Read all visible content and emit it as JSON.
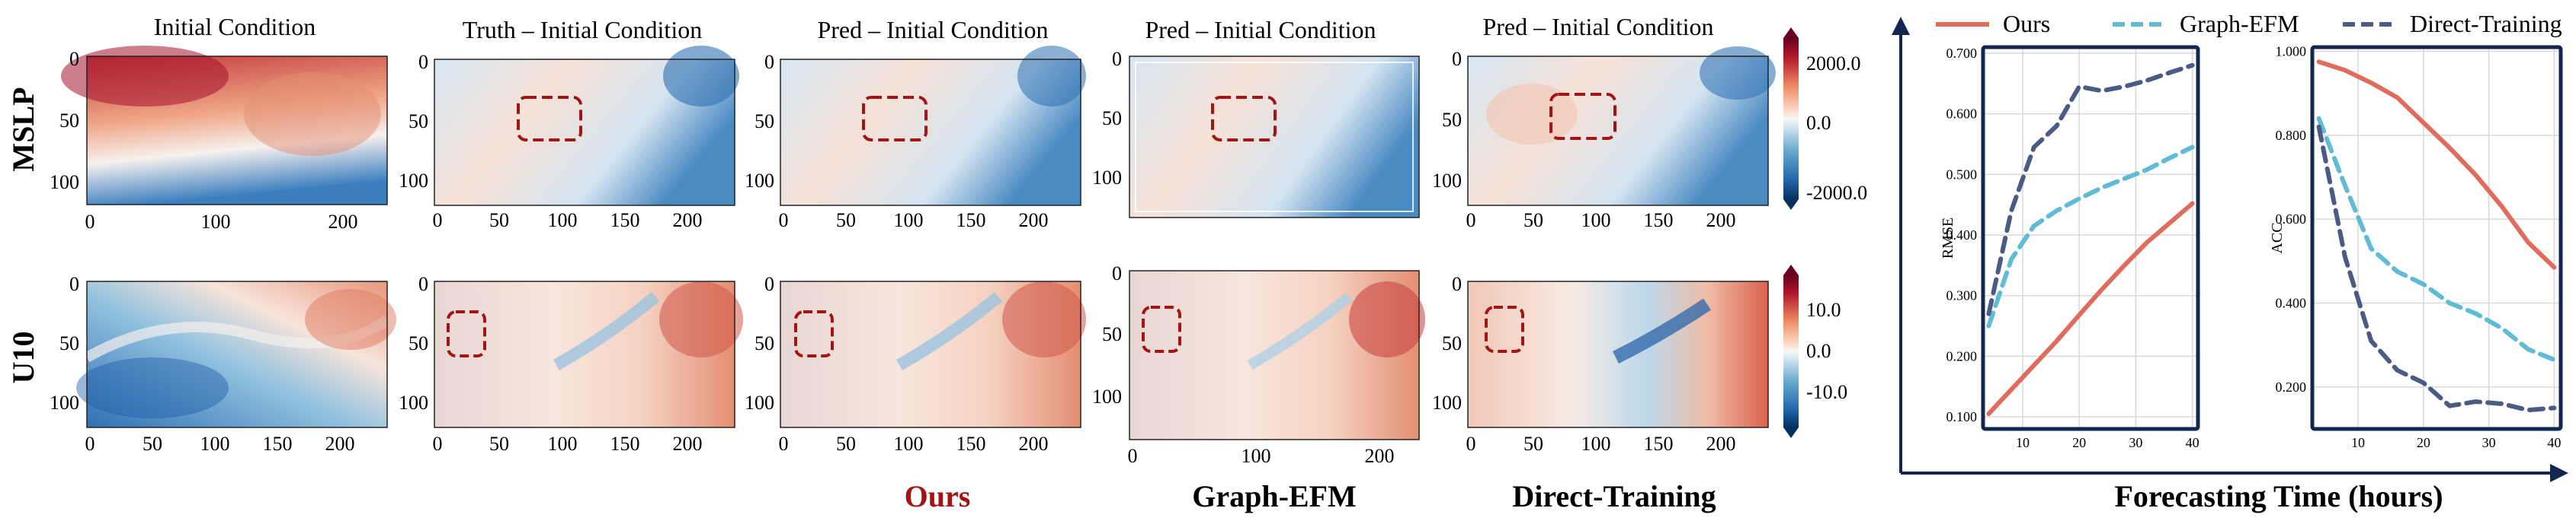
{
  "panels": {
    "col_titles": [
      "Initial Condition",
      "Truth – Initial Condition",
      "Pred – Initial Condition",
      "Pred – Initial Condition",
      "Pred – Initial Condition"
    ],
    "row_labels": [
      "MSLP",
      "U10"
    ],
    "mslp_x_ticks_a": [
      "0",
      "100",
      "200"
    ],
    "mslp_x_ticks_b": [
      "0",
      "50",
      "100",
      "150",
      "200"
    ],
    "mslp_x_ticks_c": [
      "0",
      "100",
      "200"
    ],
    "mslp_y_ticks": [
      "0",
      "50",
      "100"
    ],
    "u10_x_ticks_a": [
      "0",
      "50",
      "100",
      "150",
      "200"
    ],
    "u10_x_ticks_c": [
      "0",
      "100",
      "200"
    ],
    "u10_y_ticks": [
      "0",
      "50",
      "100"
    ],
    "cbar_mslp": [
      "2000.0",
      "0.0",
      "-2000.0"
    ],
    "cbar_u10": [
      "10.0",
      "0.0",
      "-10.0"
    ],
    "method_labels": [
      "Ours",
      "Graph-EFM",
      "Direct-Training"
    ],
    "colors": {
      "ours_label": "#a31515",
      "box": "#a31515",
      "warm": "#b2182b",
      "cool": "#2166ac"
    }
  },
  "legend": [
    "Ours",
    "Graph-EFM",
    "Direct-Training"
  ],
  "axis_title": "Forecasting Time (hours)",
  "chart_data": [
    {
      "type": "line",
      "ylabel": "RMSE",
      "xlim": [
        3,
        41
      ],
      "ylim": [
        0.08,
        0.71
      ],
      "x_ticks": [
        10,
        20,
        30,
        40
      ],
      "x_tick_labels": [
        "10",
        "20",
        "30",
        "40"
      ],
      "y_ticks": [
        0.1,
        0.2,
        0.3,
        0.4,
        0.5,
        0.6,
        0.7
      ],
      "y_tick_labels": [
        "0.100",
        "0.200",
        "0.300",
        "0.400",
        "0.500",
        "0.600",
        "0.700"
      ],
      "grid": true,
      "series": [
        {
          "name": "Ours",
          "color": "#e06c5e",
          "dash": "solid",
          "x": [
            4,
            8,
            12,
            16,
            20,
            24,
            28,
            32,
            36,
            40
          ],
          "y": [
            0.105,
            0.145,
            0.185,
            0.225,
            0.268,
            0.31,
            0.35,
            0.388,
            0.42,
            0.452
          ]
        },
        {
          "name": "Graph-EFM",
          "color": "#5fbcd3",
          "dash": "dashed",
          "x": [
            4,
            8,
            12,
            16,
            20,
            24,
            28,
            32,
            36,
            40
          ],
          "y": [
            0.25,
            0.36,
            0.415,
            0.44,
            0.46,
            0.478,
            0.493,
            0.508,
            0.527,
            0.545
          ]
        },
        {
          "name": "Direct-Training",
          "color": "#4b5b84",
          "dash": "dashed",
          "x": [
            4,
            8,
            12,
            16,
            20,
            24,
            28,
            32,
            36,
            40
          ],
          "y": [
            0.27,
            0.44,
            0.545,
            0.58,
            0.645,
            0.638,
            0.645,
            0.655,
            0.668,
            0.68
          ]
        }
      ]
    },
    {
      "type": "line",
      "ylabel": "ACC",
      "xlim": [
        3,
        41
      ],
      "ylim": [
        0.1,
        1.01
      ],
      "x_ticks": [
        10,
        20,
        30,
        40
      ],
      "x_tick_labels": [
        "10",
        "20",
        "30",
        "40"
      ],
      "y_ticks": [
        0.2,
        0.4,
        0.6,
        0.8,
        1.0
      ],
      "y_tick_labels": [
        "0.200",
        "0.400",
        "0.600",
        "0.800",
        "1.000"
      ],
      "grid": true,
      "series": [
        {
          "name": "Ours",
          "color": "#e06c5e",
          "dash": "solid",
          "x": [
            4,
            8,
            12,
            16,
            20,
            24,
            28,
            32,
            36,
            40
          ],
          "y": [
            0.975,
            0.955,
            0.925,
            0.89,
            0.83,
            0.77,
            0.705,
            0.63,
            0.545,
            0.485
          ]
        },
        {
          "name": "Graph-EFM",
          "color": "#5fbcd3",
          "dash": "dashed",
          "x": [
            4,
            8,
            12,
            16,
            20,
            24,
            28,
            32,
            36,
            40
          ],
          "y": [
            0.84,
            0.68,
            0.53,
            0.475,
            0.445,
            0.4,
            0.375,
            0.34,
            0.29,
            0.265
          ]
        },
        {
          "name": "Direct-Training",
          "color": "#4b5b84",
          "dash": "dashed",
          "x": [
            4,
            8,
            12,
            16,
            20,
            24,
            28,
            32,
            36,
            40
          ],
          "y": [
            0.82,
            0.51,
            0.31,
            0.24,
            0.21,
            0.155,
            0.165,
            0.16,
            0.145,
            0.15
          ]
        }
      ]
    }
  ]
}
